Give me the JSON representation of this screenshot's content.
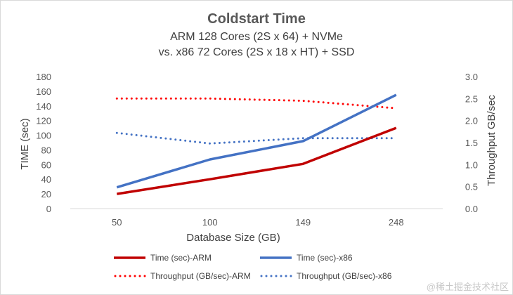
{
  "chart_data": {
    "type": "line",
    "title": "Coldstart Time",
    "subtitle_lines": [
      "ARM 128 Cores (2S x 64) + NVMe",
      "vs.  x86 72 Cores (2S x 18 x HT) + SSD"
    ],
    "xlabel": "Database Size (GB)",
    "ylabel": "TIME (sec)",
    "y2label": "Throughput GB/sec",
    "categories": [
      "50",
      "100",
      "149",
      "248"
    ],
    "ylim": [
      0,
      180
    ],
    "yticks": [
      "0",
      "20",
      "40",
      "60",
      "80",
      "100",
      "120",
      "140",
      "160",
      "180"
    ],
    "y2lim": [
      0,
      3.0
    ],
    "y2ticks": [
      "0.0",
      "0.5",
      "1.0",
      "1.5",
      "2.0",
      "2.5",
      "3.0"
    ],
    "grid": false,
    "legend_placement": "bottom",
    "series": [
      {
        "name": "Time (sec)-ARM",
        "axis": "left",
        "style": "solid",
        "color": "#c00000",
        "values": [
          20,
          40,
          61,
          110
        ]
      },
      {
        "name": "Time (sec)-x86",
        "axis": "left",
        "style": "solid",
        "color": "#4472c4",
        "values": [
          29,
          67,
          92,
          155
        ]
      },
      {
        "name": "Throughput (GB/sec)-ARM",
        "axis": "right",
        "style": "dotted",
        "color": "#ff0000",
        "values": [
          2.5,
          2.5,
          2.45,
          2.28
        ]
      },
      {
        "name": "Throughput (GB/sec)-x86",
        "axis": "right",
        "style": "dotted",
        "color": "#4472c4",
        "values": [
          1.72,
          1.48,
          1.6,
          1.6
        ]
      }
    ]
  },
  "watermark": "@稀土掘金技术社区"
}
